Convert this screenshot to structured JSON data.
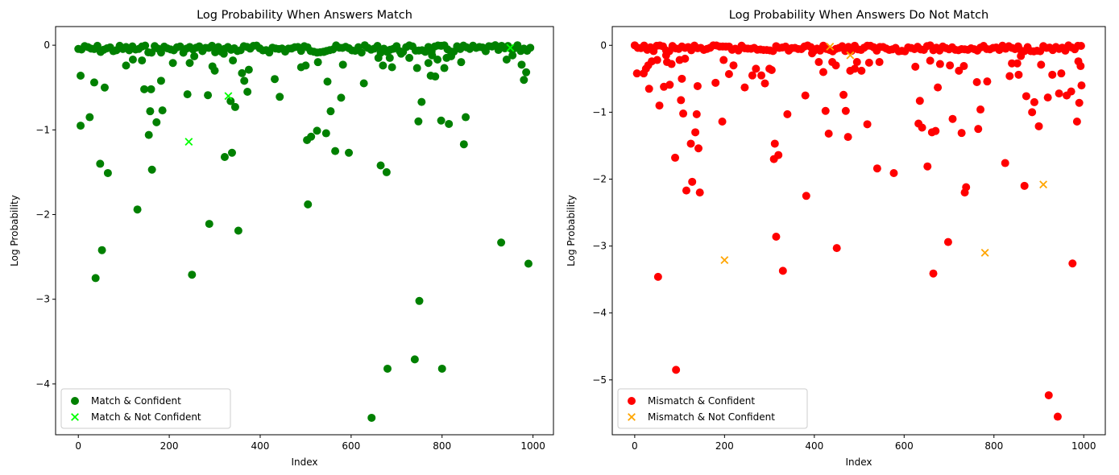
{
  "chart_data": [
    {
      "type": "scatter",
      "title": "Log Probability When Answers Match",
      "xlabel": "Index",
      "ylabel": "Log Probability",
      "xlim": [
        -50,
        1045
      ],
      "ylim": [
        -4.6,
        0.22
      ],
      "xticks": [
        0,
        200,
        400,
        600,
        800,
        1000
      ],
      "yticks": [
        0,
        -1,
        -2,
        -3,
        -4
      ],
      "legend_position": "lower-left",
      "series": [
        {
          "name": "Match & Confident",
          "marker": "circle",
          "color": "#008000",
          "points": [
            [
              5,
              -0.36
            ],
            [
              5,
              -0.95
            ],
            [
              25,
              -0.85
            ],
            [
              35,
              -0.44
            ],
            [
              38,
              -2.75
            ],
            [
              48,
              -1.4
            ],
            [
              52,
              -2.42
            ],
            [
              58,
              -0.5
            ],
            [
              65,
              -1.51
            ],
            [
              105,
              -0.24
            ],
            [
              120,
              -0.17
            ],
            [
              130,
              -1.94
            ],
            [
              140,
              -0.18
            ],
            [
              145,
              -0.52
            ],
            [
              155,
              -1.06
            ],
            [
              158,
              -0.78
            ],
            [
              160,
              -0.52
            ],
            [
              162,
              -1.47
            ],
            [
              172,
              -0.91
            ],
            [
              182,
              -0.42
            ],
            [
              185,
              -0.77
            ],
            [
              208,
              -0.21
            ],
            [
              240,
              -0.58
            ],
            [
              245,
              -0.21
            ],
            [
              250,
              -2.71
            ],
            [
              255,
              -0.13
            ],
            [
              285,
              -0.59
            ],
            [
              288,
              -2.11
            ],
            [
              295,
              -0.25
            ],
            [
              300,
              -0.3
            ],
            [
              320,
              -0.1
            ],
            [
              322,
              -1.32
            ],
            [
              335,
              -0.66
            ],
            [
              338,
              -1.27
            ],
            [
              340,
              -0.18
            ],
            [
              345,
              -0.73
            ],
            [
              352,
              -2.19
            ],
            [
              360,
              -0.33
            ],
            [
              365,
              -0.42
            ],
            [
              372,
              -0.55
            ],
            [
              375,
              -0.29
            ],
            [
              432,
              -0.4
            ],
            [
              443,
              -0.61
            ],
            [
              490,
              -0.26
            ],
            [
              500,
              -0.24
            ],
            [
              503,
              -1.12
            ],
            [
              505,
              -1.88
            ],
            [
              512,
              -1.08
            ],
            [
              525,
              -1.01
            ],
            [
              527,
              -0.2
            ],
            [
              540,
              -0.08
            ],
            [
              545,
              -1.04
            ],
            [
              548,
              -0.43
            ],
            [
              555,
              -0.78
            ],
            [
              565,
              -1.25
            ],
            [
              578,
              -0.62
            ],
            [
              582,
              -0.23
            ],
            [
              595,
              -1.27
            ],
            [
              628,
              -0.45
            ],
            [
              645,
              -4.4
            ],
            [
              660,
              -0.15
            ],
            [
              665,
              -1.42
            ],
            [
              670,
              -0.24
            ],
            [
              678,
              -1.5
            ],
            [
              680,
              -3.82
            ],
            [
              685,
              -0.15
            ],
            [
              690,
              -0.26
            ],
            [
              710,
              -0.1
            ],
            [
              728,
              -0.15
            ],
            [
              740,
              -3.71
            ],
            [
              745,
              -0.27
            ],
            [
              748,
              -0.9
            ],
            [
              750,
              -3.02
            ],
            [
              755,
              -0.67
            ],
            [
              770,
              -0.21
            ],
            [
              775,
              -0.36
            ],
            [
              778,
              -0.12
            ],
            [
              785,
              -0.37
            ],
            [
              790,
              -0.17
            ],
            [
              798,
              -0.89
            ],
            [
              800,
              -3.82
            ],
            [
              805,
              -0.27
            ],
            [
              810,
              -0.15
            ],
            [
              815,
              -0.93
            ],
            [
              820,
              -0.13
            ],
            [
              842,
              -0.2
            ],
            [
              848,
              -1.17
            ],
            [
              852,
              -0.85
            ],
            [
              930,
              -2.33
            ],
            [
              942,
              -0.17
            ],
            [
              955,
              -0.12
            ],
            [
              975,
              -0.23
            ],
            [
              980,
              -0.41
            ],
            [
              985,
              -0.32
            ],
            [
              990,
              -2.58
            ]
          ]
        },
        {
          "name": "Match & Not Confident",
          "marker": "x",
          "color": "#00ff00",
          "points": [
            [
              243,
              -1.14
            ],
            [
              330,
              -0.6
            ],
            [
              950,
              -0.03
            ]
          ]
        }
      ]
    },
    {
      "type": "scatter",
      "title": "Log Probability When Answers Do Not Match",
      "xlabel": "Index",
      "ylabel": "Log Probability",
      "xlim": [
        -50,
        1048
      ],
      "ylim": [
        -5.82,
        0.28
      ],
      "xticks": [
        0,
        200,
        400,
        600,
        800,
        1000
      ],
      "yticks": [
        0,
        -1,
        -2,
        -3,
        -4,
        -5
      ],
      "legend_position": "lower-left",
      "series": [
        {
          "name": "Mismatch & Confident",
          "marker": "circle",
          "color": "#ff0000",
          "points": [
            [
              5,
              -0.42
            ],
            [
              20,
              -0.42
            ],
            [
              25,
              -0.35
            ],
            [
              30,
              -0.3
            ],
            [
              32,
              -0.65
            ],
            [
              38,
              -0.24
            ],
            [
              50,
              -0.22
            ],
            [
              52,
              -3.46
            ],
            [
              55,
              -0.9
            ],
            [
              65,
              -0.62
            ],
            [
              70,
              -0.15
            ],
            [
              72,
              -0.25
            ],
            [
              78,
              -0.59
            ],
            [
              82,
              -0.28
            ],
            [
              90,
              -1.68
            ],
            [
              92,
              -4.85
            ],
            [
              100,
              -0.22
            ],
            [
              103,
              -0.82
            ],
            [
              105,
              -0.5
            ],
            [
              108,
              -1.02
            ],
            [
              112,
              -0.2
            ],
            [
              115,
              -2.17
            ],
            [
              125,
              -1.47
            ],
            [
              128,
              -2.04
            ],
            [
              135,
              -1.3
            ],
            [
              138,
              -1.03
            ],
            [
              140,
              -0.61
            ],
            [
              142,
              -1.54
            ],
            [
              145,
              -2.2
            ],
            [
              180,
              -0.56
            ],
            [
              195,
              -1.14
            ],
            [
              198,
              -0.22
            ],
            [
              210,
              -0.43
            ],
            [
              220,
              -0.3
            ],
            [
              245,
              -0.63
            ],
            [
              262,
              -0.45
            ],
            [
              270,
              -0.35
            ],
            [
              282,
              -0.45
            ],
            [
              290,
              -0.57
            ],
            [
              300,
              -0.35
            ],
            [
              305,
              -0.37
            ],
            [
              310,
              -1.7
            ],
            [
              312,
              -1.47
            ],
            [
              315,
              -2.86
            ],
            [
              320,
              -1.64
            ],
            [
              330,
              -3.37
            ],
            [
              340,
              -1.03
            ],
            [
              380,
              -0.75
            ],
            [
              382,
              -2.25
            ],
            [
              395,
              -0.12
            ],
            [
              410,
              -0.25
            ],
            [
              420,
              -0.4
            ],
            [
              425,
              -0.98
            ],
            [
              432,
              -1.32
            ],
            [
              440,
              -0.25
            ],
            [
              448,
              -0.3
            ],
            [
              450,
              -3.03
            ],
            [
              465,
              -0.74
            ],
            [
              470,
              -0.98
            ],
            [
              475,
              -1.37
            ],
            [
              480,
              -0.38
            ],
            [
              490,
              -0.35
            ],
            [
              495,
              -0.25
            ],
            [
              505,
              -0.38
            ],
            [
              518,
              -1.18
            ],
            [
              522,
              -0.26
            ],
            [
              540,
              -1.84
            ],
            [
              545,
              -0.25
            ],
            [
              577,
              -1.91
            ],
            [
              625,
              -0.32
            ],
            [
              632,
              -1.17
            ],
            [
              635,
              -0.83
            ],
            [
              640,
              -1.23
            ],
            [
              652,
              -1.81
            ],
            [
              658,
              -0.23
            ],
            [
              662,
              -1.3
            ],
            [
              665,
              -3.41
            ],
            [
              670,
              -1.28
            ],
            [
              675,
              -0.63
            ],
            [
              680,
              -0.28
            ],
            [
              698,
              -2.94
            ],
            [
              702,
              -0.3
            ],
            [
              708,
              -1.1
            ],
            [
              722,
              -0.38
            ],
            [
              728,
              -1.31
            ],
            [
              733,
              -0.31
            ],
            [
              735,
              -2.2
            ],
            [
              738,
              -2.12
            ],
            [
              762,
              -0.55
            ],
            [
              765,
              -1.25
            ],
            [
              770,
              -0.96
            ],
            [
              785,
              -0.54
            ],
            [
              825,
              -1.76
            ],
            [
              835,
              -0.46
            ],
            [
              840,
              -0.27
            ],
            [
              852,
              -0.27
            ],
            [
              855,
              -0.44
            ],
            [
              860,
              -0.16
            ],
            [
              868,
              -2.1
            ],
            [
              872,
              -0.76
            ],
            [
              885,
              -1.0
            ],
            [
              890,
              -0.85
            ],
            [
              900,
              -1.21
            ],
            [
              905,
              -0.29
            ],
            [
              920,
              -0.78
            ],
            [
              922,
              -5.23
            ],
            [
              930,
              -0.44
            ],
            [
              942,
              -5.55
            ],
            [
              945,
              -0.72
            ],
            [
              950,
              -0.42
            ],
            [
              962,
              -0.75
            ],
            [
              972,
              -0.69
            ],
            [
              975,
              -3.26
            ],
            [
              985,
              -1.14
            ],
            [
              988,
              -0.24
            ],
            [
              990,
              -0.86
            ],
            [
              993,
              -0.31
            ],
            [
              995,
              -0.6
            ]
          ]
        },
        {
          "name": "Mismatch & Not Confident",
          "marker": "x",
          "color": "#ffa500",
          "points": [
            [
              200,
              -3.21
            ],
            [
              435,
              -0.02
            ],
            [
              480,
              -0.15
            ],
            [
              780,
              -3.1
            ],
            [
              910,
              -2.08
            ]
          ]
        }
      ]
    }
  ]
}
